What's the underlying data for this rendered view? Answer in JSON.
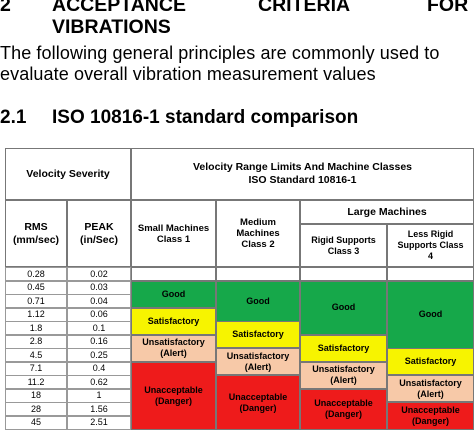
{
  "heading": {
    "number": "2",
    "w1": "ACCEPTANCE",
    "w2": "CRITERIA",
    "w3": "FOR",
    "w4": "VIBRATIONS"
  },
  "paragraph": {
    "line1": "The following general principles are commonly used to",
    "line2": "evaluate overall vibration measurement values"
  },
  "subheading": {
    "number": "2.1",
    "title": "ISO 10816-1 standard comparison"
  },
  "table": {
    "velocity_severity": "Velocity Severity",
    "range_title": "Velocity Range Limits And Machine Classes",
    "range_subtitle": "ISO Standard 10816-1",
    "rms_header": "RMS (mm/sec)",
    "peak_header": "PEAK (in/Sec)",
    "class1": "Small Machines Class 1",
    "class2": "Medium Machines Class 2",
    "large_machines": "Large Machines",
    "class3": "Rigid Supports Class 3",
    "class4": "Less Rigid Supports Class 4",
    "rms": [
      "0.28",
      "0.45",
      "0.71",
      "1.12",
      "1.8",
      "2.8",
      "4.5",
      "7.1",
      "11.2",
      "18",
      "28",
      "45"
    ],
    "peak": [
      "0.02",
      "0.03",
      "0.04",
      "0.06",
      "0.1",
      "0.16",
      "0.25",
      "0.4",
      "0.62",
      "1",
      "1.56",
      "2.51"
    ],
    "zones": {
      "good": "Good",
      "satisfactory": "Satisfactory",
      "alert": "Unsatisfactory (Alert)",
      "danger": "Unacceptable (Danger)"
    },
    "colors": {
      "good": "#16a84a",
      "satisfactory": "#f7f400",
      "alert": "#f7c9a8",
      "danger": "#ee1b1b"
    }
  }
}
